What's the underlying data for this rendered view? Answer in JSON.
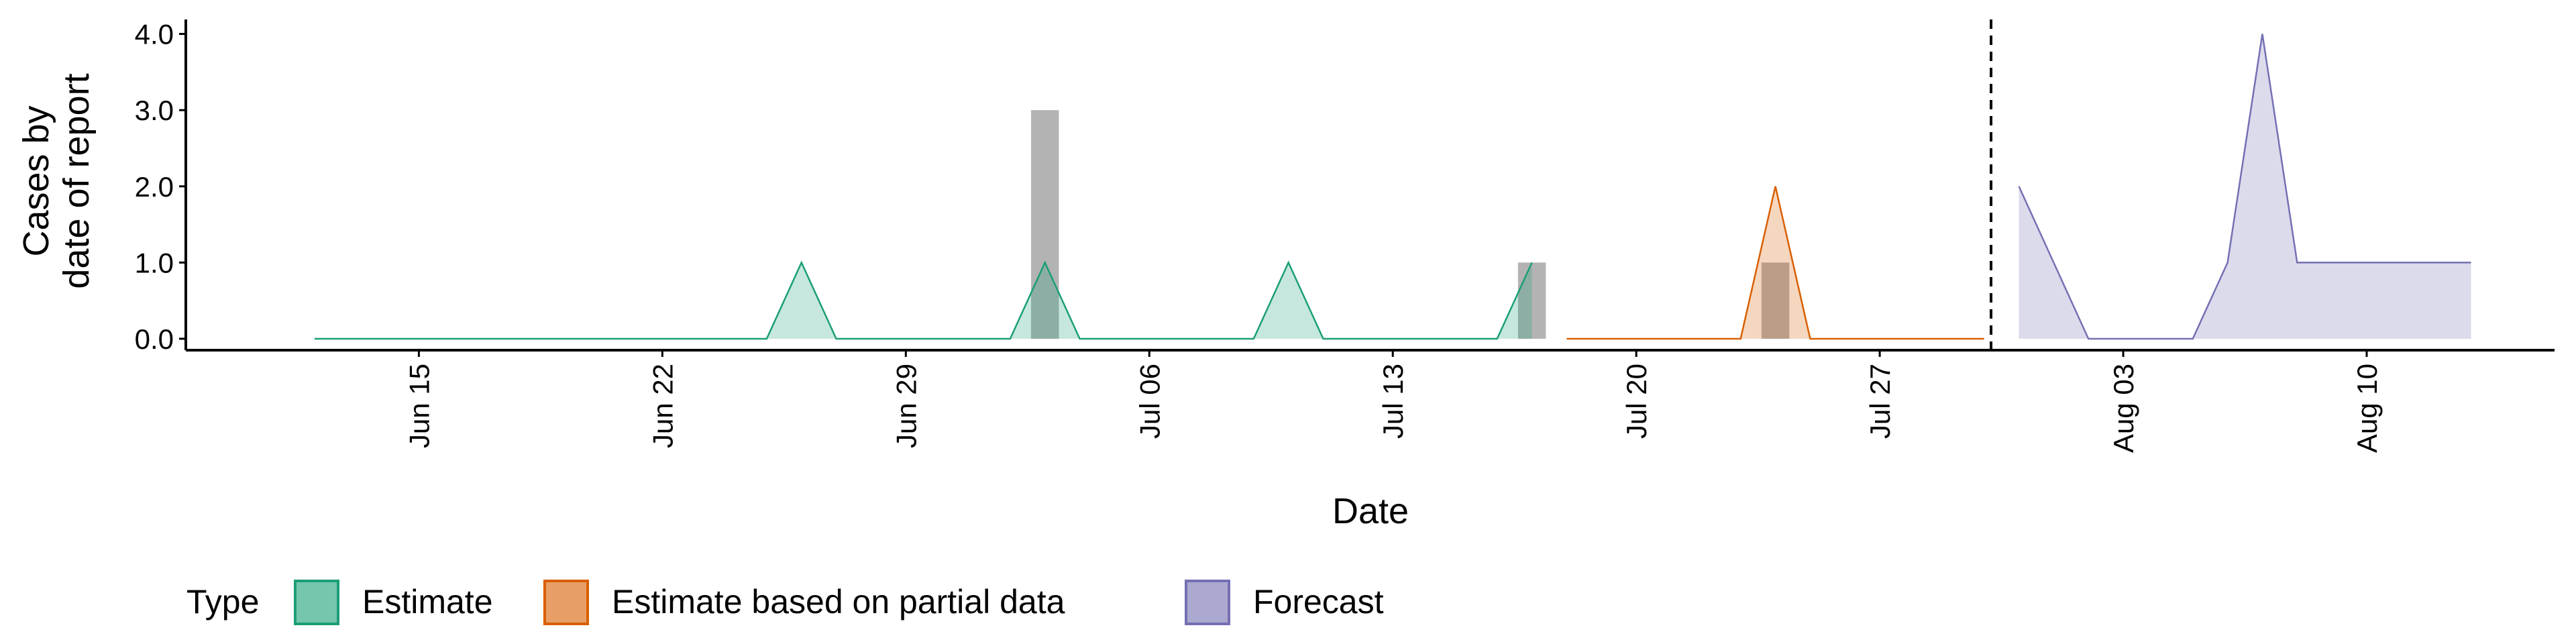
{
  "chart_data": {
    "type": "area",
    "xlabel": "Date",
    "ylabel": [
      "Cases by",
      "date of report"
    ],
    "legend_title": "Type",
    "categories": [
      null,
      null,
      null,
      "Jun 15",
      null,
      null,
      null,
      null,
      null,
      null,
      "Jun 22",
      null,
      null,
      null,
      null,
      null,
      null,
      "Jun 29",
      null,
      null,
      null,
      null,
      null,
      null,
      "Jul 06",
      null,
      null,
      null,
      null,
      null,
      null,
      "Jul 13",
      null,
      null,
      null,
      null,
      null,
      null,
      "Jul 20",
      null,
      null,
      null,
      null,
      null,
      null,
      "Jul 27",
      null,
      null,
      null,
      null,
      null,
      null,
      "Aug 03",
      null,
      null,
      null,
      null,
      null,
      null,
      "Aug 10",
      null,
      null,
      null
    ],
    "series": [
      {
        "name": "Estimate",
        "color": "#1b9e77",
        "values": [
          0,
          0,
          0,
          0,
          0,
          0,
          0,
          0,
          0,
          0,
          0,
          0,
          0,
          0,
          1,
          0,
          0,
          0,
          0,
          0,
          0,
          1,
          0,
          0,
          0,
          0,
          0,
          0,
          1,
          0,
          0,
          0,
          0,
          0,
          0,
          1,
          null,
          null,
          null,
          null,
          null,
          null,
          null,
          null,
          null,
          null,
          null,
          null,
          null,
          null,
          null,
          null,
          null,
          null,
          null,
          null,
          null,
          null,
          null,
          null,
          null,
          null,
          null
        ]
      },
      {
        "name": "Estimate based on partial data",
        "color": "#d95f02",
        "values": [
          null,
          null,
          null,
          null,
          null,
          null,
          null,
          null,
          null,
          null,
          null,
          null,
          null,
          null,
          null,
          null,
          null,
          null,
          null,
          null,
          null,
          null,
          null,
          null,
          null,
          null,
          null,
          null,
          null,
          null,
          null,
          null,
          null,
          null,
          null,
          null,
          0,
          0,
          0,
          0,
          0,
          0,
          2,
          0,
          0,
          0,
          0,
          0,
          0,
          null,
          null,
          null,
          null,
          null,
          null,
          null,
          null,
          null,
          null,
          null,
          null,
          null,
          null
        ]
      },
      {
        "name": "Forecast",
        "color": "#7570b3",
        "values": [
          null,
          null,
          null,
          null,
          null,
          null,
          null,
          null,
          null,
          null,
          null,
          null,
          null,
          null,
          null,
          null,
          null,
          null,
          null,
          null,
          null,
          null,
          null,
          null,
          null,
          null,
          null,
          null,
          null,
          null,
          null,
          null,
          null,
          null,
          null,
          null,
          null,
          null,
          null,
          null,
          null,
          null,
          null,
          null,
          null,
          null,
          null,
          null,
          null,
          2,
          1,
          0,
          0,
          0,
          0,
          1,
          4,
          1,
          1,
          1,
          1,
          1,
          1
        ]
      }
    ],
    "bars": {
      "color": "#b3b3b3",
      "values": [
        null,
        null,
        null,
        null,
        null,
        null,
        null,
        null,
        null,
        null,
        null,
        null,
        null,
        null,
        null,
        null,
        null,
        null,
        null,
        null,
        null,
        3,
        null,
        null,
        null,
        null,
        null,
        null,
        null,
        null,
        null,
        null,
        null,
        null,
        null,
        1,
        null,
        null,
        null,
        null,
        null,
        null,
        1,
        null,
        null,
        null,
        null,
        null,
        null,
        null,
        null,
        null,
        null,
        null,
        null,
        null,
        null,
        null,
        null,
        null,
        null,
        null,
        null
      ]
    },
    "vline": 48.2,
    "ylim": [
      -0.15,
      4.19
    ],
    "yticks": [
      {
        "value": 0,
        "label": "0.0"
      },
      {
        "value": 1,
        "label": "1.0"
      },
      {
        "value": 2,
        "label": "2.0"
      },
      {
        "value": 3,
        "label": "3.0"
      },
      {
        "value": 4,
        "label": "4.0"
      }
    ]
  }
}
